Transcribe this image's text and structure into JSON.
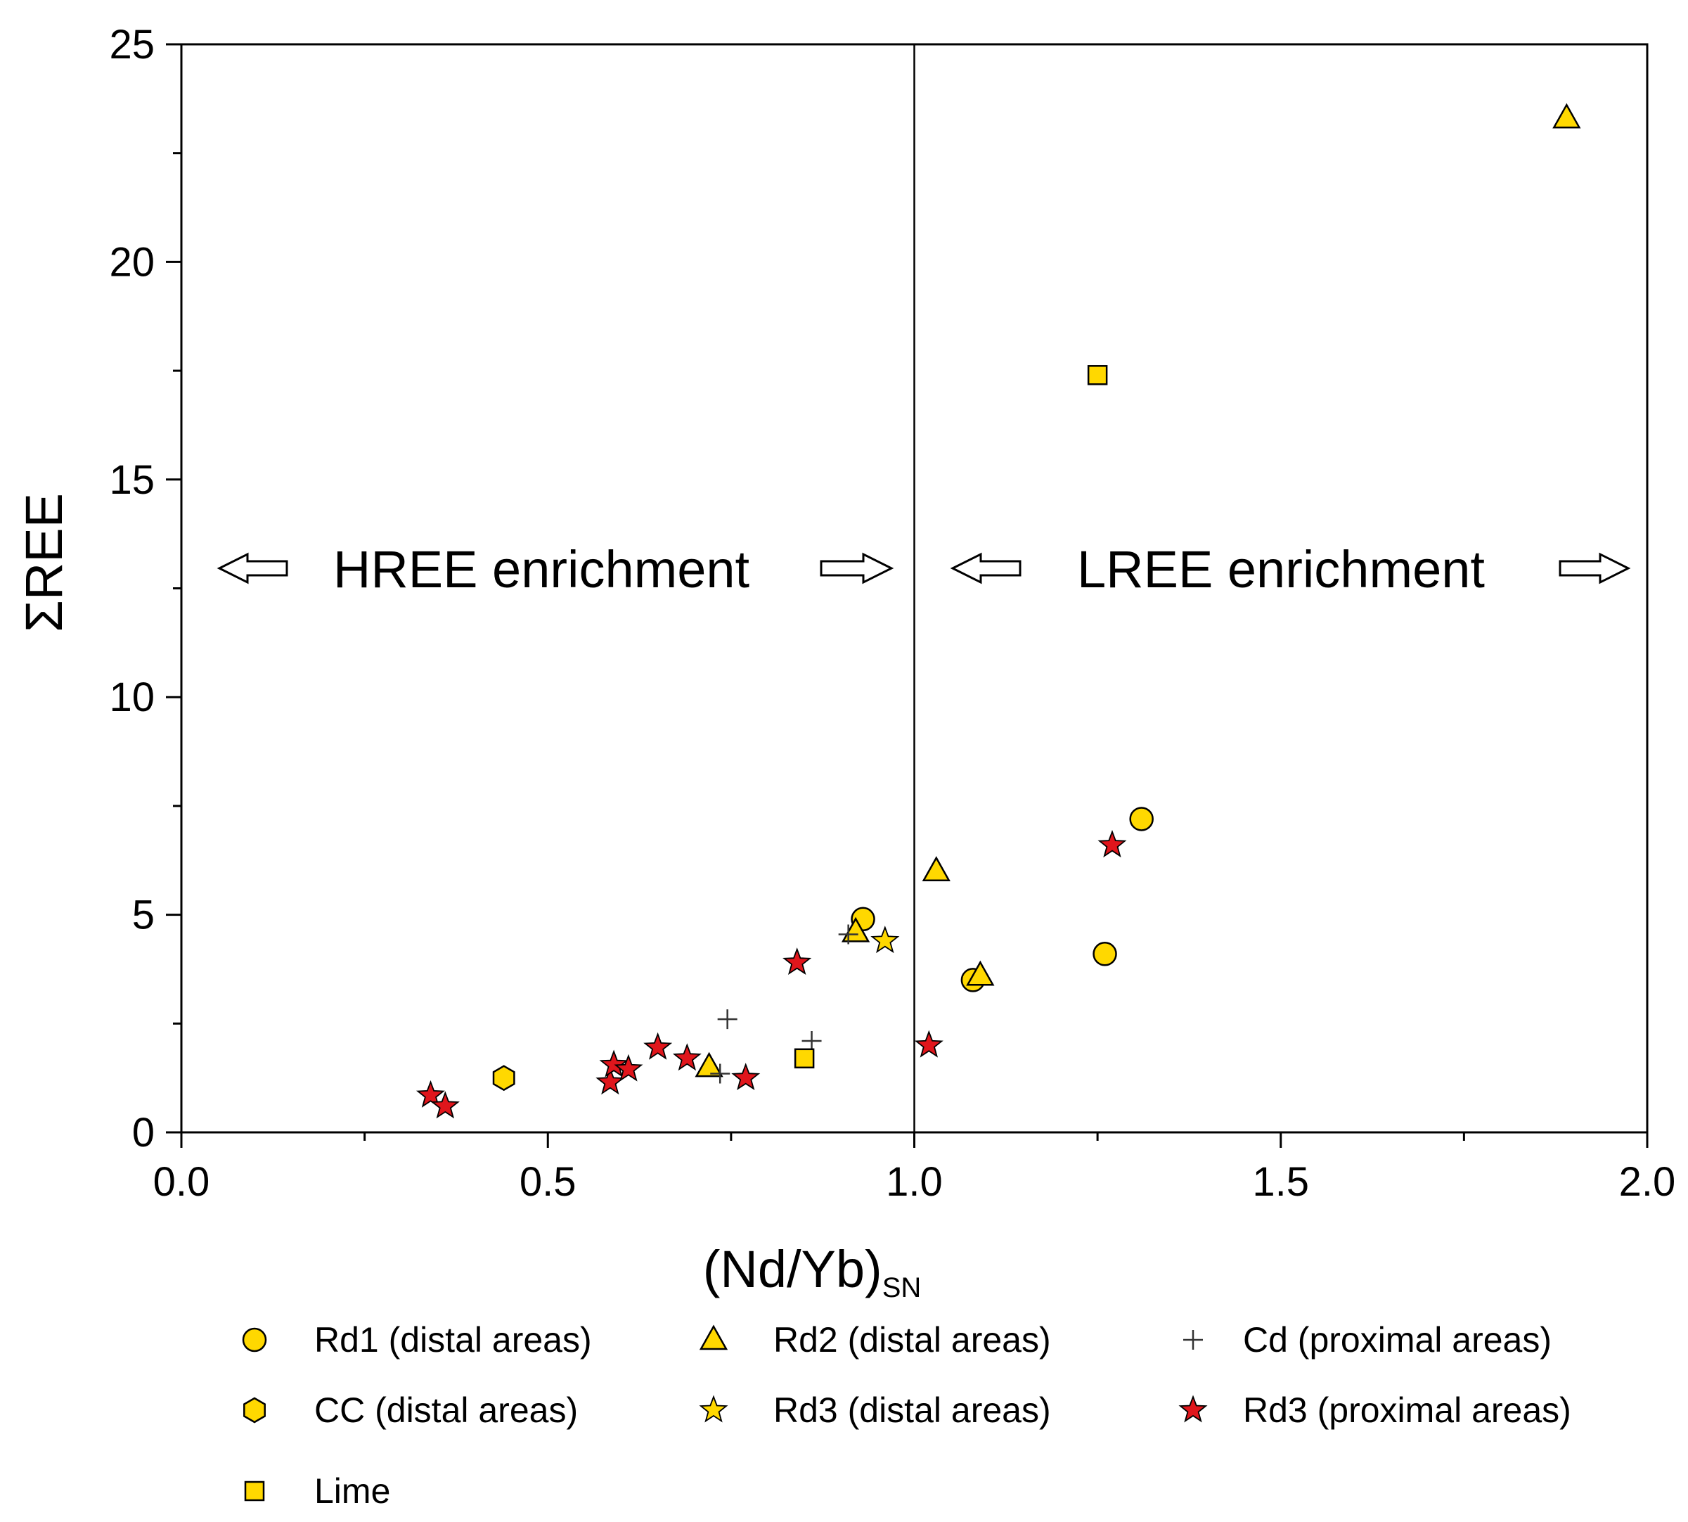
{
  "chart_data": {
    "type": "scatter",
    "xlabel": "(Nd/Yb)",
    "xlabel_subscript": "SN",
    "ylabel": "ΣREE",
    "xlim": [
      0,
      2
    ],
    "ylim": [
      0,
      25
    ],
    "x_ticks": [
      "0.0",
      "0.5",
      "1.0",
      "1.5",
      "2.0"
    ],
    "y_ticks": [
      "0",
      "5",
      "10",
      "15",
      "20",
      "25"
    ],
    "grid": false,
    "divider_x": 1.0,
    "annotations": {
      "left": "HREE enrichment",
      "right": "LREE enrichment"
    },
    "colors": {
      "yellow": "#ffd800",
      "red": "#e0161c",
      "outline": "#000000"
    },
    "series": [
      {
        "name": "Rd1 (distal areas)",
        "marker": "circle",
        "color": "#ffd800",
        "points": [
          [
            0.93,
            4.9
          ],
          [
            1.08,
            3.5
          ],
          [
            1.26,
            4.1
          ],
          [
            1.31,
            7.2
          ]
        ]
      },
      {
        "name": "Rd2 (distal areas)",
        "marker": "triangle",
        "color": "#ffd800",
        "points": [
          [
            0.72,
            1.5
          ],
          [
            0.92,
            4.6
          ],
          [
            1.03,
            6.0
          ],
          [
            1.09,
            3.6
          ],
          [
            1.89,
            23.3
          ]
        ]
      },
      {
        "name": "Cd (proximal areas)",
        "marker": "plus",
        "color": "#000000",
        "points": [
          [
            0.745,
            2.6
          ],
          [
            0.735,
            1.35
          ],
          [
            0.86,
            2.1
          ],
          [
            0.91,
            4.55
          ]
        ]
      },
      {
        "name": "CC (distal areas)",
        "marker": "hexagon",
        "color": "#ffd800",
        "points": [
          [
            0.44,
            1.25
          ]
        ]
      },
      {
        "name": "Rd3 (distal areas)",
        "marker": "star",
        "color": "#ffd800",
        "points": [
          [
            0.96,
            4.4
          ]
        ]
      },
      {
        "name": "Rd3 (proximal areas)",
        "marker": "star",
        "color": "#e0161c",
        "points": [
          [
            0.34,
            0.85
          ],
          [
            0.36,
            0.6
          ],
          [
            0.585,
            1.15
          ],
          [
            0.59,
            1.55
          ],
          [
            0.61,
            1.45
          ],
          [
            0.65,
            1.95
          ],
          [
            0.69,
            1.7
          ],
          [
            0.77,
            1.25
          ],
          [
            0.84,
            3.9
          ],
          [
            1.02,
            2.0
          ],
          [
            1.27,
            6.6
          ]
        ]
      },
      {
        "name": "Lime",
        "marker": "square",
        "color": "#ffd800",
        "points": [
          [
            0.85,
            1.7
          ],
          [
            1.25,
            17.4
          ]
        ]
      }
    ],
    "legend_position": "bottom"
  }
}
